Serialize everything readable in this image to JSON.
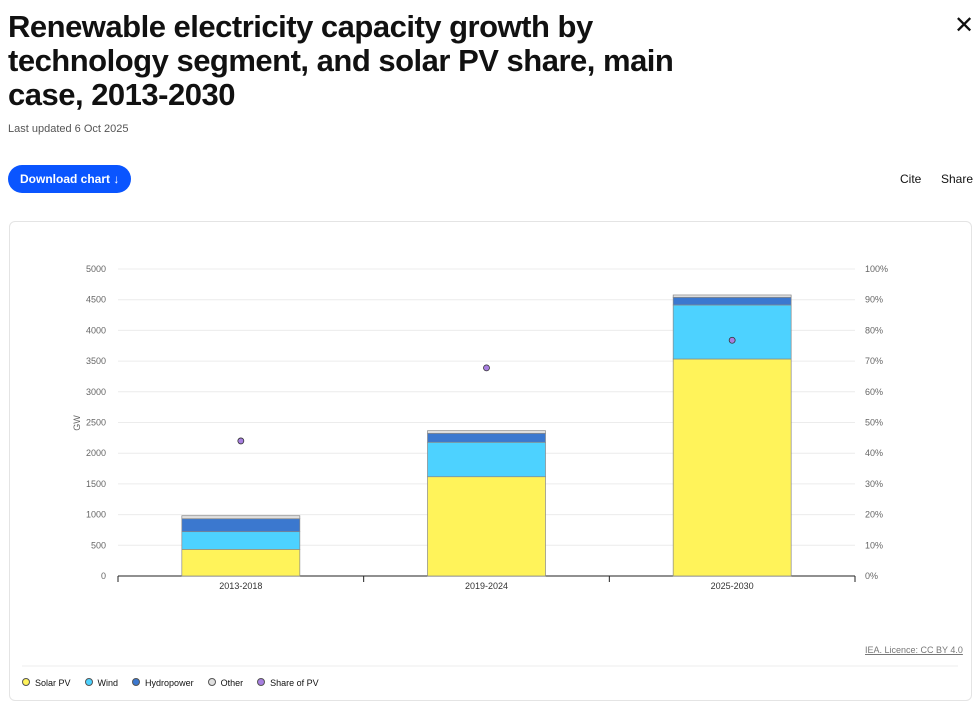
{
  "header": {
    "title": "Renewable electricity capacity growth by technology segment, and solar PV share, main case, 2013-2030",
    "updated": "Last updated 6 Oct 2025",
    "download_label": "Download chart ↓",
    "cite_label": "Cite",
    "share_label": "Share",
    "close_icon": "close-icon"
  },
  "licence": "IEA. Licence: CC BY 4.0",
  "chart_data": {
    "type": "bar",
    "stacked": true,
    "categories": [
      "2013-2018",
      "2019-2024",
      "2025-2030"
    ],
    "ylabel": "GW",
    "ylim": [
      0,
      5000
    ],
    "yticks": [
      "0",
      "500",
      "1000",
      "1500",
      "2000",
      "2500",
      "3000",
      "3500",
      "4000",
      "4500",
      "5000"
    ],
    "y2lim": [
      0,
      100
    ],
    "y2ticks": [
      "0%",
      "10%",
      "20%",
      "30%",
      "40%",
      "50%",
      "60%",
      "70%",
      "80%",
      "90%",
      "100%"
    ],
    "grid": true,
    "legend_position": "bottom",
    "series": [
      {
        "name": "Solar PV",
        "color": "#fff35a",
        "values": [
          434,
          1617,
          3534
        ]
      },
      {
        "name": "Wind",
        "color": "#4dd2ff",
        "values": [
          288,
          561,
          880
        ]
      },
      {
        "name": "Hydropower",
        "color": "#3b78cf",
        "values": [
          211,
          146,
          125
        ]
      },
      {
        "name": "Other",
        "color": "#e0e0e0",
        "values": [
          49,
          43,
          38
        ]
      }
    ],
    "line_series": {
      "name": "Share of PV",
      "color": "#a77fe0",
      "axis": "right",
      "values": [
        44,
        67.8,
        76.8
      ]
    }
  }
}
